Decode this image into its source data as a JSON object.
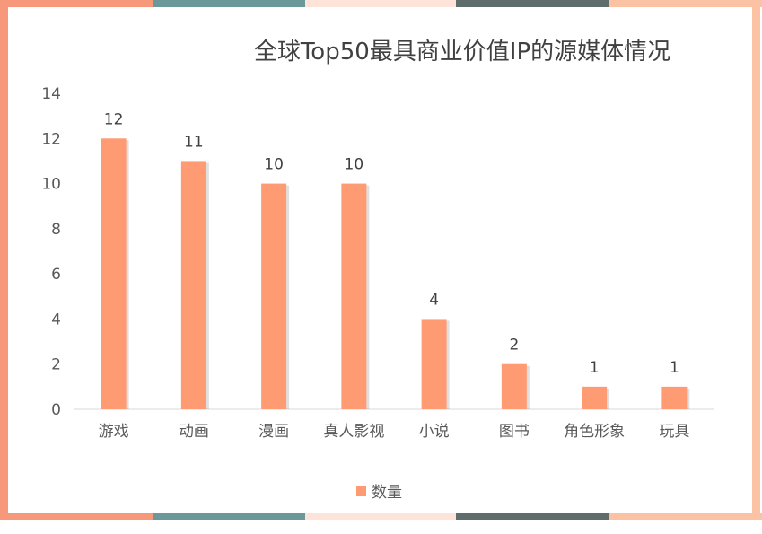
{
  "chart_data": {
    "type": "bar",
    "title": "全球Top50最具商业价值IP的源媒体情况",
    "xlabel": "",
    "ylabel": "",
    "categories": [
      "游戏",
      "动画",
      "漫画",
      "真人影视",
      "小说",
      "图书",
      "角色形象",
      "玩具"
    ],
    "series": [
      {
        "name": "数量",
        "values": [
          12,
          11,
          10,
          10,
          4,
          2,
          1,
          1
        ]
      }
    ],
    "data_labels": [
      "12",
      "11",
      "10",
      "10",
      "4",
      "2",
      "1",
      "1"
    ],
    "y_ticks": [
      "0",
      "2",
      "4",
      "6",
      "8",
      "10",
      "12",
      "14"
    ],
    "ylim": [
      0,
      14
    ],
    "grid": false,
    "legend_position": "bottom",
    "colors": {
      "bar": "#ff9b73",
      "axis": "#d9d9d9",
      "text": "#595959",
      "frame_peach": "#f7987a",
      "frame_teal": "#6b9999",
      "frame_pale": "#fde3d8",
      "frame_slate": "#5f6c6c",
      "frame_light": "#fbc3a3"
    }
  }
}
